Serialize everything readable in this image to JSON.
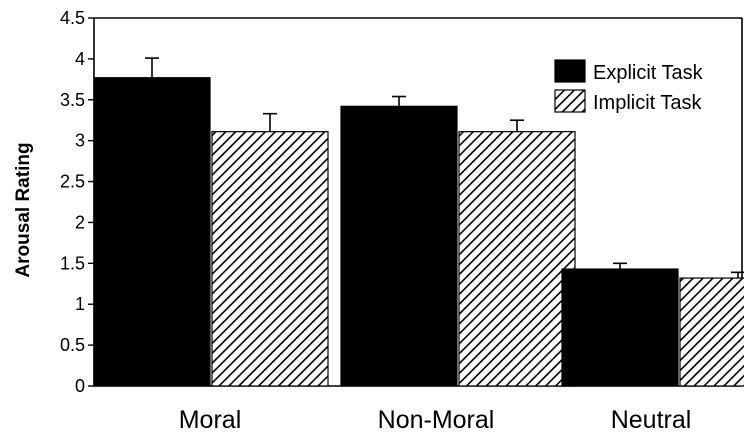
{
  "chart_data": {
    "type": "bar",
    "title": "",
    "xlabel": "",
    "ylabel": "Arousal Rating",
    "ylim": [
      0,
      4.5
    ],
    "yticks": [
      "0",
      "0.5",
      "1",
      "1.5",
      "2",
      "2.5",
      "3",
      "3.5",
      "4",
      "4.5"
    ],
    "categories": [
      "Moral",
      "Non-Moral",
      "Neutral"
    ],
    "series": [
      {
        "name": "Explicit Task",
        "color": "#000000",
        "pattern": "solid",
        "values": [
          3.77,
          3.42,
          1.43
        ],
        "errors": [
          0.24,
          0.12,
          0.07
        ]
      },
      {
        "name": "Implicit Task",
        "color": "#ffffff",
        "pattern": "diagonal-hatch",
        "values": [
          3.11,
          3.11,
          1.32
        ],
        "errors": [
          0.22,
          0.14,
          0.07
        ]
      }
    ],
    "legend": "top-right",
    "grid": false
  }
}
